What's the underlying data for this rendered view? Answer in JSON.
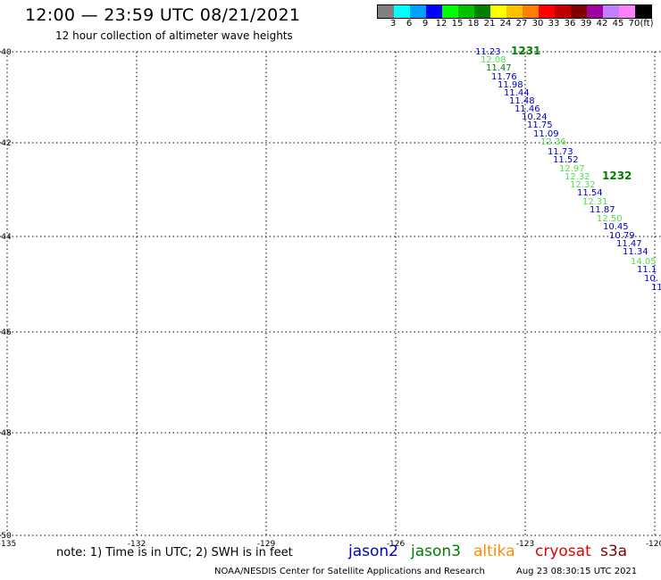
{
  "header": {
    "title": "12:00 — 23:59 UTC 08/21/2021",
    "subtitle": "12 hour collection of altimeter wave heights"
  },
  "color_scale": {
    "colors": [
      "#808080",
      "#00ffff",
      "#00a0ff",
      "#0000ff",
      "#00ff00",
      "#00c000",
      "#008000",
      "#ffff00",
      "#ffc000",
      "#ff8000",
      "#ff0000",
      "#c00000",
      "#800000",
      "#a000a0",
      "#c080ff",
      "#ff80ff",
      "#000000"
    ],
    "labels": [
      "3",
      "6",
      "9",
      "12",
      "15",
      "18",
      "21",
      "24",
      "27",
      "30",
      "33",
      "36",
      "39",
      "42",
      "45",
      "70",
      "(ft)"
    ]
  },
  "axes": {
    "lat_labels": [
      "40",
      "42",
      "44",
      "46",
      "48",
      "50"
    ],
    "lon_labels": [
      "-135",
      "-132",
      "-129",
      "-126",
      "-123",
      "-120"
    ]
  },
  "track_colors": {
    "jason2": "#0000c8",
    "jason3_light": "#50e050",
    "jason3_dark": "#008000"
  },
  "track_values": [
    {
      "text": "11.23",
      "c": "jason2"
    },
    {
      "text": "12.08",
      "c": "jason3_light"
    },
    {
      "text": "11.47",
      "c": "jason3_dark"
    },
    {
      "text": "11.76",
      "c": "jason2"
    },
    {
      "text": "11.98",
      "c": "jason2"
    },
    {
      "text": "11.44",
      "c": "jason2"
    },
    {
      "text": "11.48",
      "c": "jason2"
    },
    {
      "text": "11.46",
      "c": "jason2"
    },
    {
      "text": "10.24",
      "c": "jason2"
    },
    {
      "text": "11.75",
      "c": "jason2"
    },
    {
      "text": "11.09",
      "c": "jason2"
    },
    {
      "text": "12.36",
      "c": "jason3_light"
    },
    {
      "text": "11.73",
      "c": "jason2"
    },
    {
      "text": "11.52",
      "c": "jason2"
    },
    {
      "text": "12.97",
      "c": "jason3_light"
    },
    {
      "text": "12.32",
      "c": "jason3_light"
    },
    {
      "text": "12.32",
      "c": "jason3_light"
    },
    {
      "text": "11.54",
      "c": "jason2"
    },
    {
      "text": "12.31",
      "c": "jason3_light"
    },
    {
      "text": "11.87",
      "c": "jason2"
    },
    {
      "text": "12.50",
      "c": "jason3_light"
    },
    {
      "text": "10.45",
      "c": "jason2"
    },
    {
      "text": "10.79",
      "c": "jason2"
    },
    {
      "text": "11.47",
      "c": "jason2"
    },
    {
      "text": "11.34",
      "c": "jason2"
    },
    {
      "text": "14.05",
      "c": "jason3_light"
    },
    {
      "text": "11.1",
      "c": "jason2"
    },
    {
      "text": "10.",
      "c": "jason2"
    },
    {
      "text": "11",
      "c": "jason2"
    }
  ],
  "time_labels": [
    "1231",
    "1232"
  ],
  "footer": {
    "note": "note: 1) Time is in UTC; 2) SWH is in feet",
    "credit": "NOAA/NESDIS Center for Satellite Applications and Research",
    "timestamp": "Aug 23 08:30:15 UTC 2021"
  },
  "satellites": [
    {
      "name": "jason2",
      "color": "#0000c8"
    },
    {
      "name": "jason3",
      "color": "#008000"
    },
    {
      "name": "altika",
      "color": "#ff8c00"
    },
    {
      "name": "cryosat",
      "color": "#e00000"
    },
    {
      "name": "s3a",
      "color": "#800000"
    }
  ]
}
